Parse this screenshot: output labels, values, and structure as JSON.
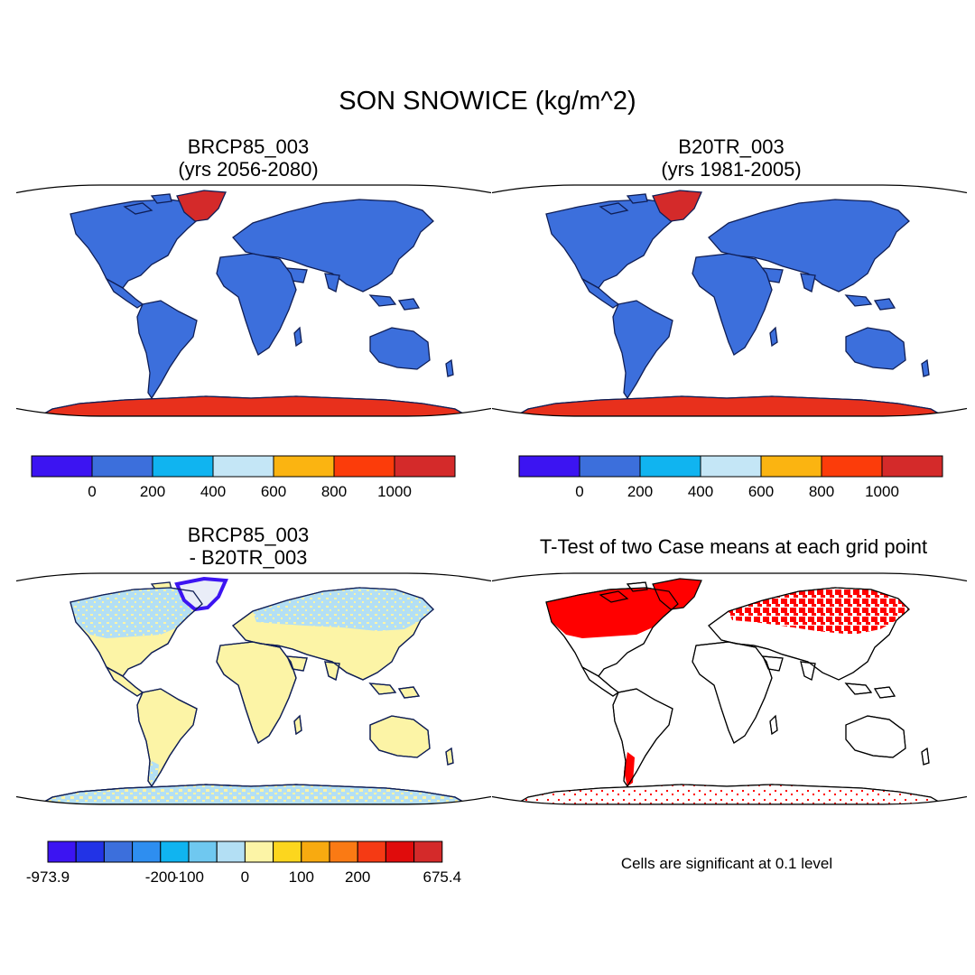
{
  "figure": {
    "title": "SON SNOWICE (kg/m^2)",
    "note": "Cells are significant at 0.1 level"
  },
  "panels": [
    {
      "id": "p1",
      "title_line1": "BRCP85_003",
      "title_line2": "(yrs 2056-2080)",
      "kind": "mean"
    },
    {
      "id": "p2",
      "title_line1": "B20TR_003",
      "title_line2": "(yrs 1981-2005)",
      "kind": "mean"
    },
    {
      "id": "p3",
      "title_line1": "BRCP85_003",
      "title_line2": "- B20TR_003",
      "kind": "difference"
    },
    {
      "id": "p4",
      "title_line1": "T-Test of two Case means at each grid point",
      "title_line2": "",
      "kind": "ttest"
    }
  ],
  "colorbar_mean": {
    "colors": [
      "#3c14f2",
      "#3c6fdc",
      "#10b4f0",
      "#c4e6f6",
      "#fbb411",
      "#fc3c0a",
      "#d42a2a"
    ],
    "labels": [
      "0",
      "200",
      "400",
      "600",
      "800",
      "1000"
    ]
  },
  "colorbar_diff": {
    "colors": [
      "#3c14f2",
      "#2233e6",
      "#3c6fdc",
      "#2e8ef0",
      "#10b4f0",
      "#6fc8f0",
      "#b3dff4",
      "#fcf4a6",
      "#fcd61e",
      "#f8aa10",
      "#fa7a14",
      "#f53a14",
      "#e00c0c",
      "#d42a2a"
    ],
    "labels": [
      "-973.9",
      "-200",
      "-100",
      "0",
      "100",
      "200",
      "675.4"
    ]
  },
  "chart_data": [
    {
      "type": "heatmap",
      "title": "BRCP85_003 (yrs 2056-2080)",
      "projection": "robinson",
      "field": "SON SNOWICE",
      "units": "kg/m^2",
      "levels": [
        0,
        200,
        400,
        600,
        800,
        1000
      ],
      "regions": [
        {
          "region": "Greenland",
          "value_range": ">1000"
        },
        {
          "region": "Antarctica",
          "value_range": ">1000"
        },
        {
          "region": "Other land",
          "value_range": "0-200"
        },
        {
          "region": "Ocean",
          "value_range": "missing"
        }
      ]
    },
    {
      "type": "heatmap",
      "title": "B20TR_003 (yrs 1981-2005)",
      "projection": "robinson",
      "field": "SON SNOWICE",
      "units": "kg/m^2",
      "levels": [
        0,
        200,
        400,
        600,
        800,
        1000
      ],
      "regions": [
        {
          "region": "Greenland",
          "value_range": ">1000"
        },
        {
          "region": "Antarctica",
          "value_range": ">1000"
        },
        {
          "region": "Other land",
          "value_range": "0-200"
        },
        {
          "region": "Ocean",
          "value_range": "missing"
        }
      ]
    },
    {
      "type": "heatmap",
      "title": "BRCP85_003 - B20TR_003",
      "projection": "robinson",
      "levels": [
        -200,
        -100,
        0,
        100,
        200
      ],
      "min": -973.9,
      "max": 675.4,
      "regions": [
        {
          "region": "Greenland margin",
          "value_range": "<-200"
        },
        {
          "region": "Northern high latitudes",
          "value_range": "-100-0"
        },
        {
          "region": "Tropics and southern continents",
          "value_range": "0-100"
        },
        {
          "region": "Antarctica",
          "value_range": "mixed -100-100"
        }
      ]
    },
    {
      "type": "heatmap",
      "title": "T-Test of two Case means at each grid point",
      "projection": "robinson",
      "significance_level": 0.1,
      "regions": [
        {
          "region": "Northern North America",
          "significant": true
        },
        {
          "region": "Northern Eurasia",
          "significant": true
        },
        {
          "region": "Southern Andes",
          "significant": true
        },
        {
          "region": "Antarctica (scattered)",
          "significant": true
        }
      ]
    }
  ]
}
